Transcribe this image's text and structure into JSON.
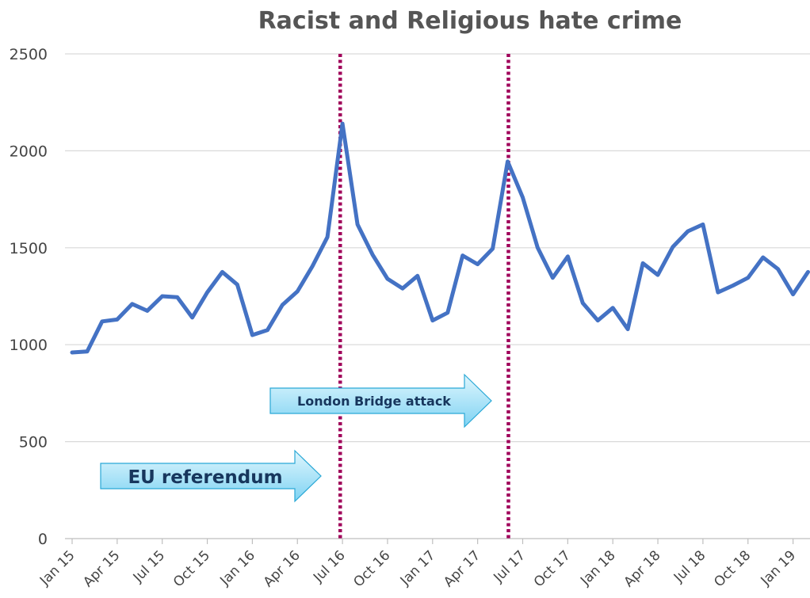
{
  "chart_data": {
    "type": "line",
    "title": "Racist and Religious hate crime",
    "xlabel": "",
    "ylabel": "",
    "ylim": [
      0,
      2500
    ],
    "yticks": [
      0,
      500,
      1000,
      1500,
      2000,
      2500
    ],
    "grid": true,
    "legend": "none",
    "x": [
      "Jan 15",
      "Feb 15",
      "Mar 15",
      "Apr 15",
      "May 15",
      "Jun 15",
      "Jul 15",
      "Aug 15",
      "Sep 15",
      "Oct 15",
      "Nov 15",
      "Dec 15",
      "Jan 16",
      "Feb 16",
      "Mar 16",
      "Apr 16",
      "May 16",
      "Jun 16",
      "Jul 16",
      "Aug 16",
      "Sep 16",
      "Oct 16",
      "Nov 16",
      "Dec 16",
      "Jan 17",
      "Feb 17",
      "Mar 17",
      "Apr 17",
      "May 17",
      "Jun 17",
      "Jul 17",
      "Aug 17",
      "Sep 17",
      "Oct 17",
      "Nov 17",
      "Dec 17",
      "Jan 18",
      "Feb 18",
      "Mar 18",
      "Apr 18",
      "May 18",
      "Jun 18",
      "Jul 18",
      "Aug 18",
      "Sep 18",
      "Oct 18",
      "Nov 18",
      "Dec 18",
      "Jan 19",
      "Feb 19"
    ],
    "xtick_labels": [
      "Jan 15",
      "Apr 15",
      "Jul 15",
      "Oct 15",
      "Jan 16",
      "Apr 16",
      "Jul 16",
      "Oct 16",
      "Jan 17",
      "Apr 17",
      "Jul 17",
      "Oct 17",
      "Jan 18",
      "Apr 18",
      "Jul 18",
      "Oct 18",
      "Jan 19"
    ],
    "series": [
      {
        "name": "",
        "color": "#4472c4",
        "values": [
          960,
          965,
          1120,
          1130,
          1210,
          1175,
          1250,
          1245,
          1140,
          1270,
          1375,
          1310,
          1050,
          1075,
          1205,
          1275,
          1405,
          1555,
          2140,
          1620,
          1465,
          1340,
          1290,
          1355,
          1125,
          1165,
          1460,
          1415,
          1495,
          1945,
          1760,
          1500,
          1345,
          1455,
          1215,
          1125,
          1190,
          1080,
          1420,
          1360,
          1505,
          1585,
          1620,
          1270,
          1305,
          1345,
          1450,
          1390,
          1260,
          1375
        ]
      }
    ],
    "events": [
      {
        "label": "EU referendum",
        "x": 17.85,
        "color": "#a0005a"
      },
      {
        "label": "London Bridge attack",
        "x": 29.05,
        "color": "#a0005a"
      }
    ]
  }
}
